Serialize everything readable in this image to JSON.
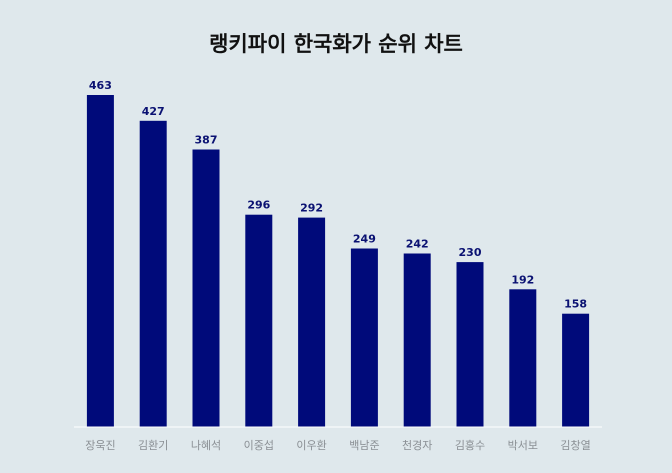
{
  "chart_data": {
    "type": "bar",
    "title": "랭키파이 한국화가 순위 차트",
    "categories": [
      "장욱진",
      "김환기",
      "나혜석",
      "이중섭",
      "이우환",
      "백남준",
      "천경자",
      "김홍수",
      "박서보",
      "김창열"
    ],
    "values": [
      463,
      427,
      387,
      296,
      292,
      249,
      242,
      230,
      192,
      158
    ],
    "xlabel": "",
    "ylabel": "",
    "ylim": [
      0,
      463
    ],
    "grid": false,
    "legend": "none",
    "bar_color": "#000a7a",
    "axis_color": "#ffffff"
  }
}
